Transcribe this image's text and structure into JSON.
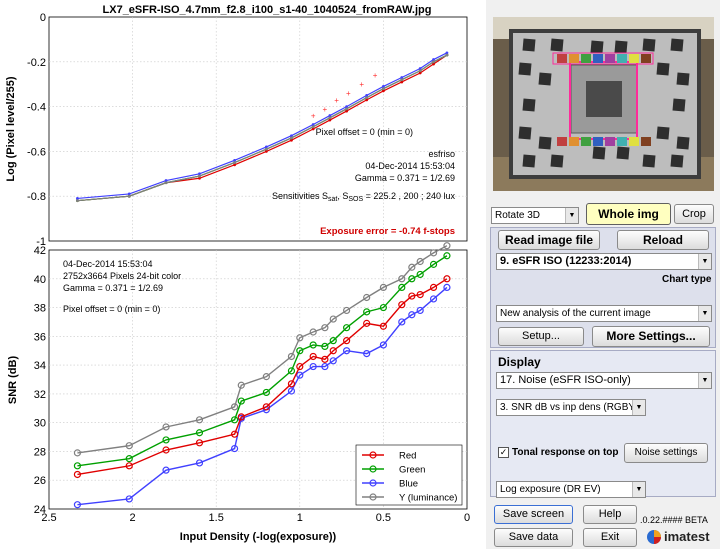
{
  "window_title": "LX7_eSFR-ISO_4.7mm_f2.8_i100_s1-40_1040524_fromRAW.jpg",
  "top_plot": {
    "ylabel": "Log (Pixel level/255)",
    "yticks": [
      "0",
      "-0.2",
      "-0.4",
      "-0.6",
      "-0.8",
      "-1"
    ],
    "annotations": {
      "pixel_offset": "Pixel offset = 0  (min = 0)",
      "method": "esfriso",
      "datetime": "04-Dec-2014 15:53:04",
      "gamma": "Gamma = 0.371 = 1/2.69",
      "sens_prefix": "Sensitivities S",
      "sens_sub1": "sat",
      "sens_mid": ", S",
      "sens_sub2": "SOS",
      "sens_rest": " = 225.2 ,  200 ;  240 lux",
      "exposure_error": "Exposure error = -0.74 f-stops"
    }
  },
  "bottom_plot": {
    "ylabel": "SNR (dB)",
    "xlabel": "Input Density (-log(exposure))",
    "yticks": [
      "42",
      "40",
      "38",
      "36",
      "34",
      "32",
      "30",
      "28",
      "26",
      "24"
    ],
    "xticks": [
      "2.5",
      "2",
      "1.5",
      "1",
      "0.5",
      "0"
    ],
    "info": {
      "datetime": "04-Dec-2014 15:53:04",
      "pixels": "2752x3664 Pixels   24-bit color",
      "gamma": "Gamma = 0.371 = 1/2.69",
      "offset": "Pixel offset = 0  (min = 0)"
    },
    "legend": [
      "Red",
      "Green",
      "Blue",
      "Y (luminance)"
    ]
  },
  "chart_data": [
    {
      "type": "line",
      "title": "LX7_eSFR-ISO_4.7mm_f2.8_i100_s1-40_1040524_fromRAW.jpg",
      "xlabel": "",
      "ylabel": "Log (Pixel level/255)",
      "xlim": [
        2.5,
        0
      ],
      "ylim": [
        -1,
        0
      ],
      "x": [
        2.33,
        2.02,
        1.8,
        1.6,
        1.39,
        1.2,
        1.05,
        0.92,
        0.82,
        0.72,
        0.6,
        0.5,
        0.39,
        0.28,
        0.2,
        0.12
      ],
      "series": [
        {
          "name": "Red",
          "values": [
            -0.82,
            -0.8,
            -0.74,
            -0.72,
            -0.66,
            -0.6,
            -0.55,
            -0.5,
            -0.46,
            -0.42,
            -0.37,
            -0.33,
            -0.29,
            -0.25,
            -0.21,
            -0.17
          ]
        },
        {
          "name": "Green",
          "values": [
            -0.82,
            -0.8,
            -0.74,
            -0.71,
            -0.65,
            -0.59,
            -0.54,
            -0.49,
            -0.45,
            -0.41,
            -0.36,
            -0.32,
            -0.28,
            -0.24,
            -0.2,
            -0.17
          ]
        },
        {
          "name": "Blue",
          "values": [
            -0.81,
            -0.79,
            -0.73,
            -0.7,
            -0.64,
            -0.58,
            -0.53,
            -0.48,
            -0.44,
            -0.4,
            -0.35,
            -0.31,
            -0.27,
            -0.23,
            -0.19,
            -0.16
          ]
        },
        {
          "name": "Y (luminance)",
          "values": [
            -0.82,
            -0.8,
            -0.74,
            -0.71,
            -0.65,
            -0.59,
            -0.54,
            -0.49,
            -0.45,
            -0.41,
            -0.36,
            -0.32,
            -0.28,
            -0.24,
            -0.2,
            -0.17
          ]
        }
      ],
      "reference_points": {
        "x": [
          0.92,
          0.85,
          0.78,
          0.71,
          0.63,
          0.55
        ],
        "y": [
          -0.44,
          -0.41,
          -0.37,
          -0.34,
          -0.3,
          -0.26
        ]
      },
      "grid": true
    },
    {
      "type": "line",
      "xlabel": "Input Density (-log(exposure))",
      "ylabel": "SNR (dB)",
      "xlim": [
        2.5,
        0
      ],
      "ylim": [
        24,
        42
      ],
      "x": [
        2.33,
        2.02,
        1.8,
        1.6,
        1.39,
        1.35,
        1.2,
        1.05,
        1.0,
        0.92,
        0.85,
        0.8,
        0.72,
        0.6,
        0.5,
        0.39,
        0.33,
        0.28,
        0.2,
        0.12
      ],
      "series": [
        {
          "name": "Red",
          "values": [
            26.4,
            27.0,
            28.1,
            28.6,
            29.2,
            30.4,
            31.1,
            32.7,
            33.9,
            34.6,
            34.4,
            35.0,
            35.7,
            36.9,
            36.7,
            38.2,
            38.8,
            38.9,
            39.4,
            40.0
          ]
        },
        {
          "name": "Green",
          "values": [
            27.0,
            27.5,
            28.8,
            29.3,
            30.2,
            31.5,
            32.1,
            33.6,
            35.0,
            35.4,
            35.3,
            35.7,
            36.6,
            37.7,
            38.0,
            39.4,
            40.0,
            40.3,
            41.0,
            41.6
          ]
        },
        {
          "name": "Blue",
          "values": [
            24.3,
            24.7,
            26.7,
            27.2,
            28.2,
            30.3,
            30.9,
            32.2,
            33.3,
            33.9,
            33.9,
            34.3,
            35.0,
            34.8,
            35.4,
            37.0,
            37.5,
            37.8,
            38.6,
            39.4
          ]
        },
        {
          "name": "Y (luminance)",
          "values": [
            27.9,
            28.4,
            29.7,
            30.2,
            31.1,
            32.6,
            33.2,
            34.6,
            35.9,
            36.3,
            36.6,
            37.2,
            37.8,
            38.7,
            39.4,
            40.0,
            40.8,
            41.2,
            41.8,
            42.3
          ]
        }
      ],
      "legend_position": "bottom-right",
      "grid": true
    }
  ],
  "panel": {
    "rotate_select": "Rotate 3D",
    "whole_img_button": "Whole img",
    "crop_button": "Crop",
    "read_image_button": "Read image file",
    "reload_button": "Reload",
    "chart_select": "9. eSFR ISO  (12233:2014)",
    "chart_type_label": "Chart type",
    "analysis_select": "New analysis of the current image",
    "setup_button": "Setup...",
    "more_settings_button": "More Settings...",
    "display_label": "Display",
    "display_select": "17. Noise (eSFR ISO-only)",
    "snr_select": "3.  SNR dB vs inp dens (RGBY)",
    "tonal_checkbox_label": "Tonal response on top",
    "noise_settings_button": "Noise settings",
    "log_select": "Log exposure (DR EV)",
    "save_screen_button": "Save screen",
    "help_button": "Help",
    "version_text": ".0.22.#### BETA",
    "save_data_button": "Save data",
    "exit_button": "Exit",
    "logo_text": "imatest",
    "colors": {
      "accent_yellow": "#ffffc0",
      "magenta_roi": "#ff2a9a",
      "panel_blue": "#dde0ec"
    }
  }
}
